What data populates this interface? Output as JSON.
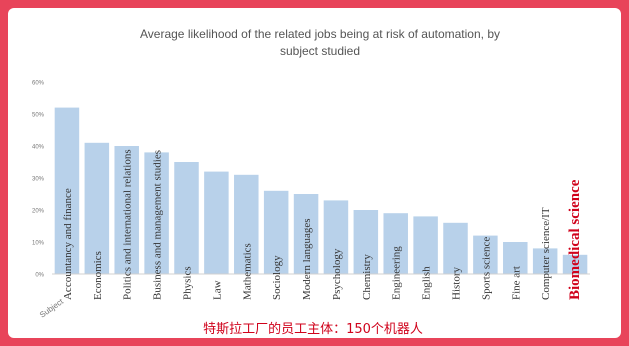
{
  "chart_data": {
    "type": "bar",
    "title": "Average likelihood of the related jobs being at risk of automation, by subject studied",
    "title_lines": [
      "Average likelihood of the related jobs being at risk of automation, by",
      "subject studied"
    ],
    "xlabel": "Subject",
    "ylabel": "",
    "ylim": [
      0,
      0.6
    ],
    "yticks": [
      0,
      0.1,
      0.2,
      0.3,
      0.4,
      0.5,
      0.6
    ],
    "ytick_labels": [
      "0%",
      "10%",
      "20%",
      "30%",
      "40%",
      "50%",
      "60%"
    ],
    "grid": false,
    "bar_color": "#b8d1ea",
    "categories": [
      "Accountancy and finance",
      "Economics",
      "Politics and international relations",
      "Business and management studies",
      "Physics",
      "Law",
      "Mathematics",
      "Sociology",
      "Modern languages",
      "Psychology",
      "Chemistry",
      "Engineering",
      "English",
      "History",
      "Sports science",
      "Fine art",
      "Computer science/IT",
      "Biomedical science"
    ],
    "values": [
      0.52,
      0.41,
      0.4,
      0.38,
      0.35,
      0.32,
      0.31,
      0.26,
      0.25,
      0.23,
      0.2,
      0.19,
      0.18,
      0.16,
      0.12,
      0.1,
      0.08,
      0.06
    ],
    "highlight": {
      "category": "Biomedical science",
      "color": "#d0021b"
    }
  },
  "caption": "特斯拉工厂的员工主体：150个机器人"
}
